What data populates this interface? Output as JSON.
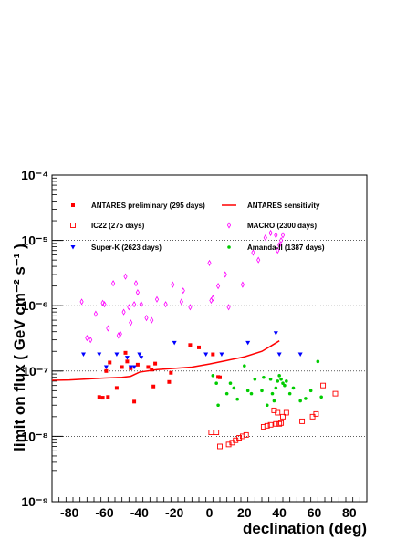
{
  "chart_data": {
    "type": "scatter",
    "xlabel": "declination (deg)",
    "ylabel": "limit on flux ( GeV cm⁻² s⁻¹ )",
    "xlim": [
      -90,
      90
    ],
    "ylim": [
      1e-09,
      0.0001
    ],
    "yscale": "log",
    "x_ticks": [
      -80,
      -60,
      -40,
      -20,
      0,
      20,
      40,
      60,
      80
    ],
    "y_tick_labels": [
      "10⁻⁹",
      "10⁻⁸",
      "10⁻⁷",
      "10⁻⁶",
      "10⁻⁵",
      "10⁻⁴"
    ],
    "grid": "horizontal dotted at decades",
    "legend_position": "top",
    "series": [
      {
        "name": "ANTARES preliminary (295 days)",
        "marker": "filled-square",
        "color": "#ff0000",
        "points": [
          [
            -63,
            4e-08
          ],
          [
            -61,
            3.9e-08
          ],
          [
            -58,
            4e-08
          ],
          [
            -59,
            1e-07
          ],
          [
            -57,
            1.35e-07
          ],
          [
            -53,
            5.5e-08
          ],
          [
            -50,
            1.15e-07
          ],
          [
            -48,
            1.9e-07
          ],
          [
            -47,
            1.4e-07
          ],
          [
            -45,
            1.1e-07
          ],
          [
            -43,
            3.4e-08
          ],
          [
            -41,
            1.25e-07
          ],
          [
            -35,
            1.15e-07
          ],
          [
            -33,
            1.05e-07
          ],
          [
            -32,
            5.8e-08
          ],
          [
            -31,
            1.3e-07
          ],
          [
            -23,
            6.8e-08
          ],
          [
            -22,
            9.4e-08
          ],
          [
            -11,
            2.5e-07
          ],
          [
            -6,
            2.3e-07
          ],
          [
            2,
            1.8e-07
          ],
          [
            5,
            8.1e-08
          ],
          [
            6,
            8e-08
          ]
        ]
      },
      {
        "name": "IC22 (275 days)",
        "marker": "open-square",
        "color": "#ff0000",
        "points": [
          [
            1,
            1.15e-08
          ],
          [
            4,
            1.15e-08
          ],
          [
            6,
            7e-09
          ],
          [
            11,
            7.5e-09
          ],
          [
            13,
            8e-09
          ],
          [
            15,
            8.7e-09
          ],
          [
            17,
            9.5e-09
          ],
          [
            19,
            1e-08
          ],
          [
            21,
            1.05e-08
          ],
          [
            31,
            1.4e-08
          ],
          [
            33,
            1.45e-08
          ],
          [
            35,
            1.5e-08
          ],
          [
            37,
            2.5e-08
          ],
          [
            38,
            1.55e-08
          ],
          [
            39,
            2.3e-08
          ],
          [
            40,
            1.55e-08
          ],
          [
            41,
            1.6e-08
          ],
          [
            42,
            2e-08
          ],
          [
            44,
            2.3e-08
          ],
          [
            53,
            1.7e-08
          ],
          [
            59,
            2e-08
          ],
          [
            61,
            2.2e-08
          ],
          [
            65,
            6e-08
          ],
          [
            72,
            4.5e-08
          ]
        ]
      },
      {
        "name": "Super-K (2623 days)",
        "marker": "down-triangle",
        "color": "#0000ff",
        "points": [
          [
            -72,
            1.8e-07
          ],
          [
            -63,
            1.8e-07
          ],
          [
            -59,
            1.15e-07
          ],
          [
            -53,
            1.8e-07
          ],
          [
            -47,
            1.6e-07
          ],
          [
            -45,
            1.15e-07
          ],
          [
            -43,
            1.15e-07
          ],
          [
            -40,
            1.8e-07
          ],
          [
            -39,
            1.6e-07
          ],
          [
            -20,
            2.7e-07
          ],
          [
            -2,
            1.8e-07
          ],
          [
            7,
            1.8e-07
          ],
          [
            22,
            2.7e-07
          ],
          [
            38,
            3.8e-07
          ],
          [
            40,
            1.8e-07
          ],
          [
            52,
            1.8e-07
          ]
        ]
      },
      {
        "name": "MACRO (2300 days)",
        "marker": "open-diamond",
        "color": "#ff00ff",
        "points": [
          [
            -73,
            1.15e-06
          ],
          [
            -70,
            3.2e-07
          ],
          [
            -68,
            3e-07
          ],
          [
            -65,
            7.5e-07
          ],
          [
            -61,
            1.1e-06
          ],
          [
            -60,
            1.05e-06
          ],
          [
            -58,
            4.5e-07
          ],
          [
            -55,
            2.2e-06
          ],
          [
            -52,
            3.5e-07
          ],
          [
            -51,
            3.7e-07
          ],
          [
            -49,
            8e-07
          ],
          [
            -48,
            2.8e-06
          ],
          [
            -46,
            9.5e-07
          ],
          [
            -45,
            5.5e-07
          ],
          [
            -43,
            1.05e-06
          ],
          [
            -42,
            2.2e-06
          ],
          [
            -41,
            1.6e-06
          ],
          [
            -39,
            1.05e-06
          ],
          [
            -36,
            6.5e-07
          ],
          [
            -33,
            6e-07
          ],
          [
            -30,
            1.25e-06
          ],
          [
            -25,
            1.05e-06
          ],
          [
            -21,
            2.1e-06
          ],
          [
            -16,
            1.15e-06
          ],
          [
            -15,
            1.7e-06
          ],
          [
            -11,
            9.5e-07
          ],
          [
            0,
            4.5e-06
          ],
          [
            1,
            1.2e-06
          ],
          [
            2,
            1.3e-06
          ],
          [
            5,
            2e-06
          ],
          [
            9,
            3e-06
          ],
          [
            11,
            9.5e-07
          ],
          [
            19,
            2.1e-06
          ],
          [
            25,
            6.5e-06
          ],
          [
            28,
            5e-06
          ],
          [
            32,
            1.1e-05
          ],
          [
            35,
            1.3e-05
          ],
          [
            38,
            1.2e-05
          ],
          [
            39,
            7e-06
          ],
          [
            40,
            8.5e-06
          ],
          [
            41,
            1e-05
          ],
          [
            42,
            1.2e-05
          ]
        ]
      },
      {
        "name": "Amanda-II (1387 days)",
        "marker": "filled-circle",
        "color": "#00cc00",
        "points": [
          [
            2,
            8.5e-08
          ],
          [
            4,
            6.5e-08
          ],
          [
            5,
            3e-08
          ],
          [
            10,
            4.5e-08
          ],
          [
            12,
            6.5e-08
          ],
          [
            14,
            5.5e-08
          ],
          [
            16,
            3.7e-08
          ],
          [
            20,
            1.2e-07
          ],
          [
            22,
            5e-08
          ],
          [
            24,
            4.5e-08
          ],
          [
            26,
            7.5e-08
          ],
          [
            30,
            5e-08
          ],
          [
            31,
            8e-08
          ],
          [
            33,
            3e-08
          ],
          [
            35,
            7.5e-08
          ],
          [
            36,
            4.5e-08
          ],
          [
            37,
            3.5e-08
          ],
          [
            38,
            5.5e-08
          ],
          [
            39,
            7e-08
          ],
          [
            40,
            8.5e-08
          ],
          [
            41,
            7.5e-08
          ],
          [
            42,
            6.5e-08
          ],
          [
            43,
            6e-08
          ],
          [
            44,
            7e-08
          ],
          [
            46,
            4.5e-08
          ],
          [
            48,
            5.5e-08
          ],
          [
            52,
            3.5e-08
          ],
          [
            55,
            3.8e-08
          ],
          [
            58,
            5e-08
          ],
          [
            62,
            1.4e-07
          ],
          [
            64,
            4e-08
          ]
        ]
      },
      {
        "name": "ANTARES sensitivity",
        "marker": "line",
        "color": "#ff0000",
        "line": [
          [
            -90,
            7.2e-08
          ],
          [
            -80,
            7.3e-08
          ],
          [
            -60,
            7.8e-08
          ],
          [
            -50,
            8e-08
          ],
          [
            -45,
            8.3e-08
          ],
          [
            -40,
            9.6e-08
          ],
          [
            -30,
            1.05e-07
          ],
          [
            -20,
            1.1e-07
          ],
          [
            -10,
            1.15e-07
          ],
          [
            0,
            1.28e-07
          ],
          [
            10,
            1.45e-07
          ],
          [
            20,
            1.65e-07
          ],
          [
            30,
            2e-07
          ],
          [
            35,
            2.4e-07
          ],
          [
            40,
            2.9e-07
          ]
        ]
      }
    ]
  }
}
